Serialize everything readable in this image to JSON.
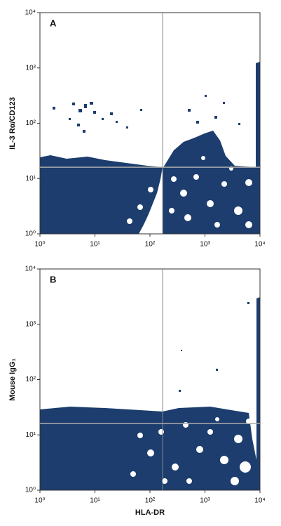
{
  "chart_data": [
    {
      "type": "scatter",
      "panel_label": "A",
      "y_label": "IL-3 Rα/CD123",
      "xscale": "log",
      "yscale": "log",
      "xlim": [
        1,
        10000
      ],
      "ylim": [
        1,
        10000
      ],
      "xticks": [
        {
          "value": 1,
          "label": "10⁰"
        },
        {
          "value": 10,
          "label": "10¹"
        },
        {
          "value": 100,
          "label": "10²"
        },
        {
          "value": 1000,
          "label": "10³"
        },
        {
          "value": 10000,
          "label": "10⁴"
        }
      ],
      "yticks": [
        {
          "value": 1,
          "label": "10⁰"
        },
        {
          "value": 10,
          "label": "10¹"
        },
        {
          "value": 100,
          "label": "10²"
        },
        {
          "value": 1000,
          "label": "10³"
        },
        {
          "value": 10000,
          "label": "10⁴"
        }
      ],
      "quadrant": {
        "x": 170,
        "y": 16
      },
      "color": "#1c3d6e"
    },
    {
      "type": "scatter",
      "panel_label": "B",
      "y_label": "Mouse IgG₁",
      "x_label": "HLA-DR",
      "xscale": "log",
      "yscale": "log",
      "xlim": [
        1,
        10000
      ],
      "ylim": [
        1,
        10000
      ],
      "xticks": [
        {
          "value": 1,
          "label": "10⁰"
        },
        {
          "value": 10,
          "label": "10¹"
        },
        {
          "value": 100,
          "label": "10²"
        },
        {
          "value": 1000,
          "label": "10³"
        },
        {
          "value": 10000,
          "label": "10⁴"
        }
      ],
      "yticks": [
        {
          "value": 1,
          "label": "10⁰"
        },
        {
          "value": 10,
          "label": "10¹"
        },
        {
          "value": 100,
          "label": "10²"
        },
        {
          "value": 1000,
          "label": "10³"
        },
        {
          "value": 10000,
          "label": "10⁴"
        }
      ],
      "quadrant": {
        "x": 170,
        "y": 16
      },
      "color": "#1c3d6e"
    }
  ]
}
